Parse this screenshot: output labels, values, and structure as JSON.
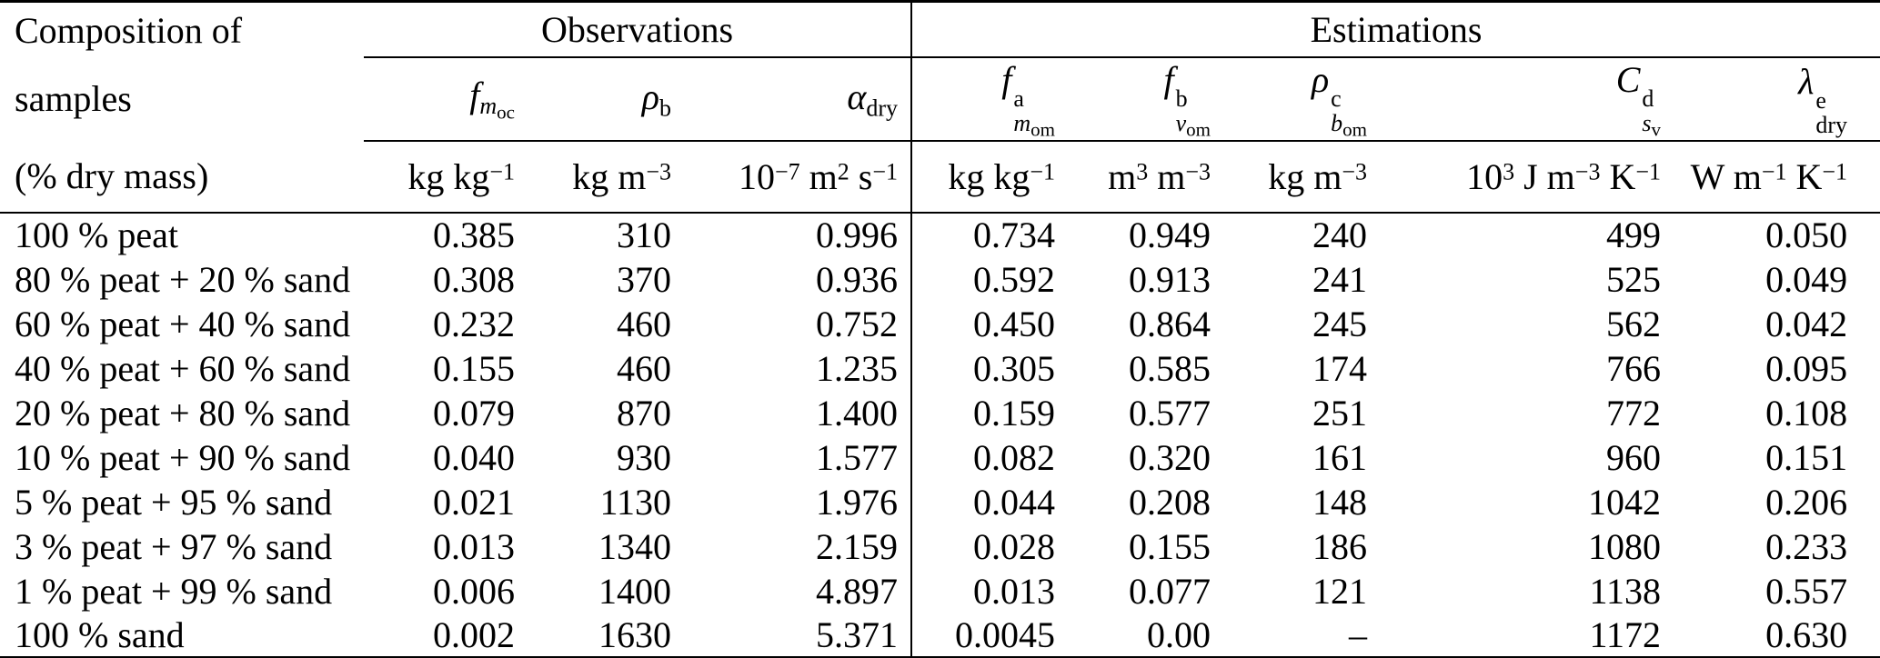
{
  "table": {
    "row_header": {
      "line1": "Composition of",
      "line2": "samples",
      "line3": "(% dry mass)"
    },
    "groups": [
      {
        "label": "Observations",
        "span": 3
      },
      {
        "label": "Estimations",
        "span": 5
      }
    ],
    "columns": [
      {
        "name": "f_m_oc",
        "symbol": {
          "base": "f",
          "italic": true,
          "sup": null,
          "sub": {
            "text": "m",
            "italic": true,
            "subsub": "oc"
          }
        },
        "unit": [
          [
            "kg "
          ],
          [
            "kg",
            "−1"
          ]
        ]
      },
      {
        "name": "rho_b",
        "symbol": {
          "base": "ρ",
          "italic": true,
          "sup": null,
          "sub": {
            "text": "b",
            "italic": false
          }
        },
        "unit": [
          [
            "kg "
          ],
          [
            "m",
            "−3"
          ]
        ]
      },
      {
        "name": "alpha_dry",
        "symbol": {
          "base": "α",
          "italic": true,
          "sup": null,
          "sub": {
            "text": "dry",
            "italic": false
          }
        },
        "unit": [
          [
            "10",
            "−7"
          ],
          [
            " m",
            "2"
          ],
          [
            " s",
            "−1"
          ]
        ]
      },
      {
        "name": "f_m_om",
        "symbol": {
          "base": "f",
          "italic": true,
          "sup": "a",
          "sub": {
            "text": "m",
            "italic": true,
            "subsub": "om"
          }
        },
        "unit": [
          [
            "kg "
          ],
          [
            "kg",
            "−1"
          ]
        ]
      },
      {
        "name": "f_v_om",
        "symbol": {
          "base": "f",
          "italic": true,
          "sup": "b",
          "sub": {
            "text": "v",
            "italic": true,
            "subsub": "om"
          }
        },
        "unit": [
          [
            "m",
            "3"
          ],
          [
            " m",
            "−3"
          ]
        ]
      },
      {
        "name": "rho_b_om",
        "symbol": {
          "base": "ρ",
          "italic": true,
          "sup": "c",
          "sub": {
            "text": "b",
            "italic": true,
            "subsub": "om"
          }
        },
        "unit": [
          [
            "kg "
          ],
          [
            "m",
            "−3"
          ]
        ]
      },
      {
        "name": "C_s_v",
        "symbol": {
          "base": "C",
          "italic": true,
          "sup": "d",
          "sub": {
            "text": "s",
            "italic": true,
            "subsub": "v"
          }
        },
        "unit": [
          [
            "10",
            "3"
          ],
          [
            " J "
          ],
          [
            "m",
            "−3"
          ],
          [
            " K",
            "−1"
          ]
        ]
      },
      {
        "name": "lambda_dry",
        "symbol": {
          "base": "λ",
          "italic": true,
          "sup": "e",
          "sub": {
            "text": "dry",
            "italic": false
          }
        },
        "unit": [
          [
            "W "
          ],
          [
            "m",
            "−1"
          ],
          [
            " K",
            "−1"
          ]
        ]
      }
    ],
    "rows": [
      [
        "100 % peat",
        "0.385",
        "310",
        "0.996",
        "0.734",
        "0.949",
        "240",
        "499",
        "0.050"
      ],
      [
        "80 % peat + 20 % sand",
        "0.308",
        "370",
        "0.936",
        "0.592",
        "0.913",
        "241",
        "525",
        "0.049"
      ],
      [
        "60 % peat + 40 % sand",
        "0.232",
        "460",
        "0.752",
        "0.450",
        "0.864",
        "245",
        "562",
        "0.042"
      ],
      [
        "40 % peat + 60 % sand",
        "0.155",
        "460",
        "1.235",
        "0.305",
        "0.585",
        "174",
        "766",
        "0.095"
      ],
      [
        "20 % peat + 80 % sand",
        "0.079",
        "870",
        "1.400",
        "0.159",
        "0.577",
        "251",
        "772",
        "0.108"
      ],
      [
        "10 % peat + 90 % sand",
        "0.040",
        "930",
        "1.577",
        "0.082",
        "0.320",
        "161",
        "960",
        "0.151"
      ],
      [
        "5 % peat + 95 % sand",
        "0.021",
        "1130",
        "1.976",
        "0.044",
        "0.208",
        "148",
        "1042",
        "0.206"
      ],
      [
        "3 % peat + 97 % sand",
        "0.013",
        "1340",
        "2.159",
        "0.028",
        "0.155",
        "186",
        "1080",
        "0.233"
      ],
      [
        "1 % peat + 99 % sand",
        "0.006",
        "1400",
        "4.897",
        "0.013",
        "0.077",
        "121",
        "1138",
        "0.557"
      ],
      [
        "100 % sand",
        "0.002",
        "1630",
        "5.371",
        "0.0045",
        "0.00",
        "–",
        "1172",
        "0.630"
      ]
    ]
  }
}
